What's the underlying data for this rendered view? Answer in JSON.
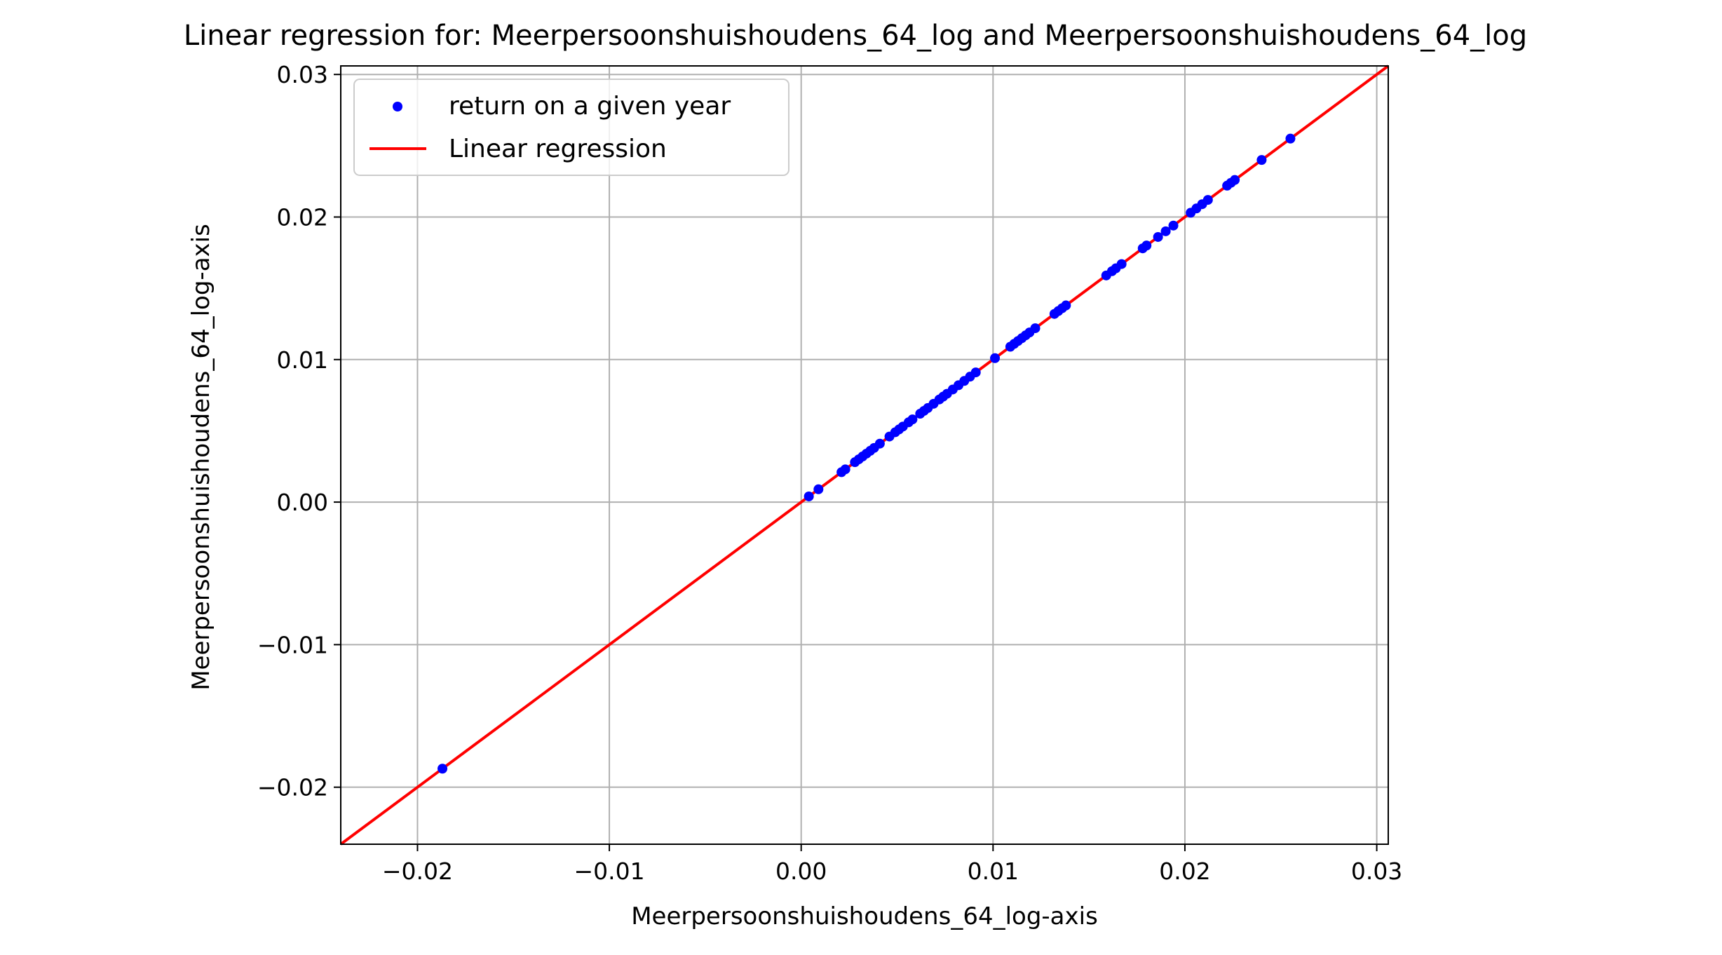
{
  "chart_data": {
    "type": "scatter",
    "title": "Linear regression for: Meerpersoonshuishoudens_64_log and Meerpersoonshuishoudens_64_log",
    "xlabel": "Meerpersoonshuishoudens_64_log-axis",
    "ylabel": "Meerpersoonshuishoudens_64_log-axis",
    "xlim": [
      -0.024,
      0.0306
    ],
    "ylim": [
      -0.024,
      0.0306
    ],
    "x_ticks": [
      -0.02,
      -0.01,
      0.0,
      0.01,
      0.02,
      0.03
    ],
    "x_tick_labels": [
      "−0.02",
      "−0.01",
      "0.00",
      "0.01",
      "0.02",
      "0.03"
    ],
    "y_ticks": [
      -0.02,
      -0.01,
      0.0,
      0.01,
      0.02,
      0.03
    ],
    "y_tick_labels": [
      "−0.02",
      "−0.01",
      "0.00",
      "0.01",
      "0.02",
      "0.03"
    ],
    "grid": true,
    "legend_position": "top-left",
    "series": [
      {
        "name": "return on a given year",
        "kind": "scatter",
        "color": "#0000ff",
        "points": [
          [
            -0.0187,
            -0.0187
          ],
          [
            0.0004,
            0.0004
          ],
          [
            0.0009,
            0.0009
          ],
          [
            0.0021,
            0.0021
          ],
          [
            0.0023,
            0.0023
          ],
          [
            0.0028,
            0.0028
          ],
          [
            0.003,
            0.003
          ],
          [
            0.0032,
            0.0032
          ],
          [
            0.0034,
            0.0034
          ],
          [
            0.0036,
            0.0036
          ],
          [
            0.0038,
            0.0038
          ],
          [
            0.0041,
            0.0041
          ],
          [
            0.0046,
            0.0046
          ],
          [
            0.0049,
            0.0049
          ],
          [
            0.0051,
            0.0051
          ],
          [
            0.0053,
            0.0053
          ],
          [
            0.0056,
            0.0056
          ],
          [
            0.0058,
            0.0058
          ],
          [
            0.0062,
            0.0062
          ],
          [
            0.0064,
            0.0064
          ],
          [
            0.0066,
            0.0066
          ],
          [
            0.0069,
            0.0069
          ],
          [
            0.0072,
            0.0072
          ],
          [
            0.0074,
            0.0074
          ],
          [
            0.0076,
            0.0076
          ],
          [
            0.0079,
            0.0079
          ],
          [
            0.0082,
            0.0082
          ],
          [
            0.0085,
            0.0085
          ],
          [
            0.0088,
            0.0088
          ],
          [
            0.0091,
            0.0091
          ],
          [
            0.0101,
            0.0101
          ],
          [
            0.0109,
            0.0109
          ],
          [
            0.0111,
            0.0111
          ],
          [
            0.0113,
            0.0113
          ],
          [
            0.0115,
            0.0115
          ],
          [
            0.0117,
            0.0117
          ],
          [
            0.0119,
            0.0119
          ],
          [
            0.0122,
            0.0122
          ],
          [
            0.0132,
            0.0132
          ],
          [
            0.0134,
            0.0134
          ],
          [
            0.0136,
            0.0136
          ],
          [
            0.0138,
            0.0138
          ],
          [
            0.0159,
            0.0159
          ],
          [
            0.0162,
            0.0162
          ],
          [
            0.0164,
            0.0164
          ],
          [
            0.0167,
            0.0167
          ],
          [
            0.0178,
            0.0178
          ],
          [
            0.018,
            0.018
          ],
          [
            0.0186,
            0.0186
          ],
          [
            0.019,
            0.019
          ],
          [
            0.0194,
            0.0194
          ],
          [
            0.0203,
            0.0203
          ],
          [
            0.0206,
            0.0206
          ],
          [
            0.0209,
            0.0209
          ],
          [
            0.0212,
            0.0212
          ],
          [
            0.0222,
            0.0222
          ],
          [
            0.0224,
            0.0224
          ],
          [
            0.0226,
            0.0226
          ],
          [
            0.024,
            0.024
          ],
          [
            0.0255,
            0.0255
          ]
        ]
      },
      {
        "name": "Linear regression",
        "kind": "line",
        "color": "#ff0000",
        "x": [
          -0.024,
          0.0306
        ],
        "y": [
          -0.024,
          0.0306
        ]
      }
    ]
  }
}
